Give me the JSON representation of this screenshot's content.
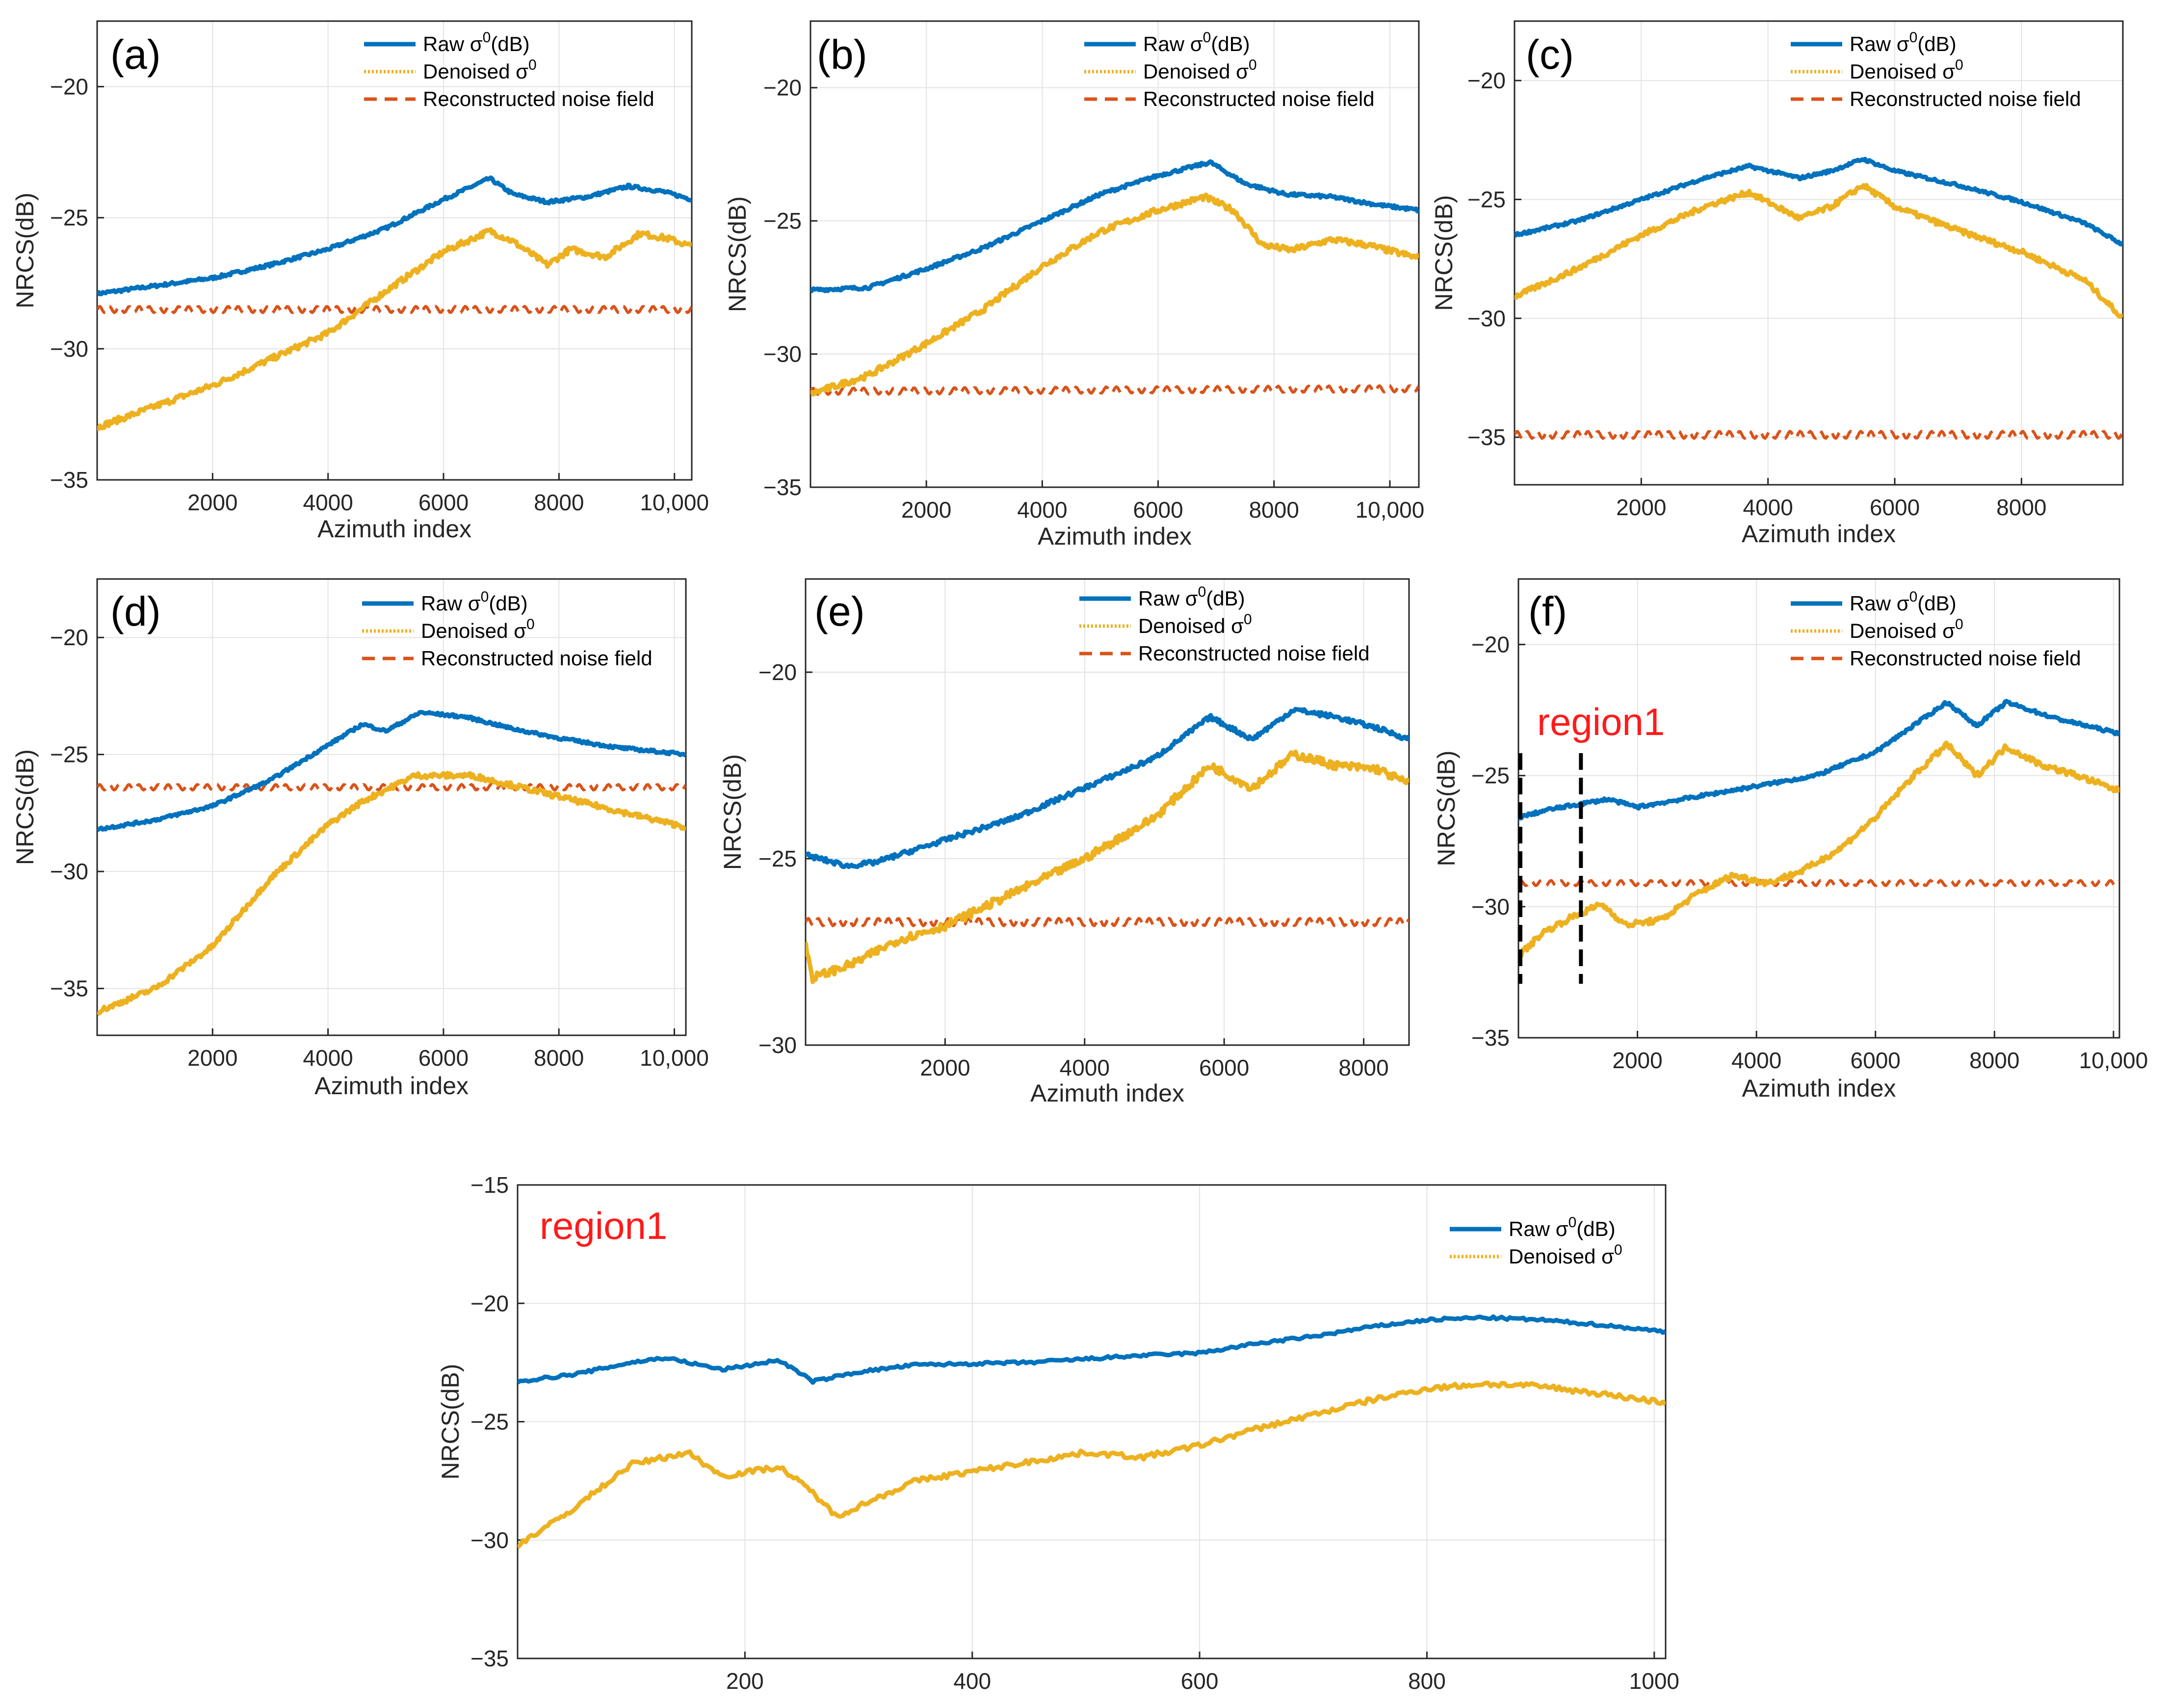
{
  "figure": {
    "legend": {
      "raw": "Raw σ",
      "raw_sup": "0",
      "raw_unit": "(dB)",
      "denoised": "Denoised σ",
      "denoised_sup": "0",
      "noise": "Reconstructed noise field"
    }
  },
  "colors": {
    "raw": "#0072BD",
    "denoised": "#EDB120",
    "noise": "#D95319",
    "region": "#FF1A1A",
    "grid": "#E3E3E3"
  },
  "chart_data": [
    {
      "id": "a",
      "label": "(a)",
      "type": "line",
      "xlabel": "Azimuth index",
      "ylabel": "NRCS(dB)",
      "xlim": [
        0,
        10300
      ],
      "ylim": [
        -35,
        -17.5
      ],
      "xticks": [
        2000,
        4000,
        6000,
        8000,
        10000
      ],
      "xtick_labels": [
        "2000",
        "4000",
        "6000",
        "8000",
        "10,000"
      ],
      "yticks": [
        -35,
        -30,
        -25,
        -20
      ],
      "ytick_labels": [
        "−35",
        "−30",
        "−25",
        "−20"
      ],
      "series": [
        {
          "name": "Raw σ0(dB)",
          "key": "raw",
          "x": [
            0,
            1000,
            2000,
            3000,
            4000,
            5000,
            6000,
            6800,
            7200,
            7800,
            8500,
            9200,
            9800,
            10300
          ],
          "y": [
            -27.9,
            -27.6,
            -27.3,
            -26.8,
            -26.2,
            -25.4,
            -24.3,
            -23.5,
            -24.1,
            -24.4,
            -24.2,
            -23.8,
            -24.0,
            -24.3
          ]
        },
        {
          "name": "Denoised σ0",
          "key": "denoised",
          "x": [
            0,
            1000,
            2000,
            3000,
            4000,
            4500,
            5000,
            6000,
            6800,
            7200,
            7800,
            8200,
            8800,
            9400,
            9900,
            10300
          ],
          "y": [
            -33.0,
            -32.2,
            -31.4,
            -30.4,
            -29.4,
            -28.6,
            -27.8,
            -26.3,
            -25.5,
            -25.9,
            -26.8,
            -26.2,
            -26.5,
            -25.6,
            -25.8,
            -26.1
          ]
        },
        {
          "name": "Reconstructed noise field",
          "key": "noise",
          "x": [
            0,
            10300
          ],
          "y": [
            -28.5,
            -28.5
          ],
          "wiggle": 0.12
        }
      ]
    },
    {
      "id": "b",
      "label": "(b)",
      "type": "line",
      "xlabel": "Azimuth index",
      "ylabel": "NRCS(dB)",
      "xlim": [
        0,
        10500
      ],
      "ylim": [
        -35,
        -17.5
      ],
      "xticks": [
        2000,
        4000,
        6000,
        8000,
        10000
      ],
      "xtick_labels": [
        "2000",
        "4000",
        "6000",
        "8000",
        "10,000"
      ],
      "yticks": [
        -35,
        -30,
        -25,
        -20
      ],
      "ytick_labels": [
        "−35",
        "−30",
        "−25",
        "−20"
      ],
      "series": [
        {
          "name": "Raw σ0(dB)",
          "key": "raw",
          "x": [
            0,
            1000,
            2000,
            3000,
            4000,
            5000,
            6000,
            6900,
            7500,
            8200,
            9000,
            9800,
            10500
          ],
          "y": [
            -27.6,
            -27.5,
            -26.8,
            -26.0,
            -25.0,
            -24.0,
            -23.3,
            -22.8,
            -23.6,
            -24.0,
            -24.1,
            -24.4,
            -24.6
          ]
        },
        {
          "name": "Denoised σ0",
          "key": "denoised",
          "x": [
            0,
            1000,
            2000,
            3000,
            4000,
            5000,
            6000,
            6800,
            7300,
            7800,
            8300,
            9000,
            9600,
            10500
          ],
          "y": [
            -31.5,
            -30.8,
            -29.6,
            -28.3,
            -26.7,
            -25.4,
            -24.6,
            -24.1,
            -24.6,
            -25.9,
            -26.1,
            -25.7,
            -25.9,
            -26.4
          ]
        },
        {
          "name": "Reconstructed noise field",
          "key": "noise",
          "x": [
            0,
            10500
          ],
          "y": [
            -31.4,
            -31.3
          ],
          "wiggle": 0.12
        }
      ]
    },
    {
      "id": "c",
      "label": "(c)",
      "type": "line",
      "xlabel": "Azimuth index",
      "ylabel": "NRCS(dB)",
      "xlim": [
        0,
        9600
      ],
      "ylim": [
        -37,
        -17.5
      ],
      "xticks": [
        2000,
        4000,
        6000,
        8000
      ],
      "xtick_labels": [
        "2000",
        "4000",
        "6000",
        "8000"
      ],
      "yticks": [
        -35,
        -30,
        -25,
        -20
      ],
      "ytick_labels": [
        "−35",
        "−30",
        "−25",
        "−20"
      ],
      "series": [
        {
          "name": "Raw σ0(dB)",
          "key": "raw",
          "x": [
            0,
            1000,
            2000,
            3000,
            3700,
            4500,
            5000,
            5500,
            6000,
            7000,
            8000,
            9000,
            9600
          ],
          "y": [
            -26.5,
            -25.9,
            -25.0,
            -24.1,
            -23.6,
            -24.1,
            -23.8,
            -23.3,
            -23.8,
            -24.4,
            -25.1,
            -26.0,
            -26.9
          ]
        },
        {
          "name": "Denoised σ0",
          "key": "denoised",
          "x": [
            0,
            1000,
            2000,
            3000,
            3700,
            4500,
            5000,
            5500,
            6000,
            7000,
            8000,
            9000,
            9600
          ],
          "y": [
            -29.1,
            -27.9,
            -26.5,
            -25.3,
            -24.7,
            -25.8,
            -25.3,
            -24.4,
            -25.3,
            -26.3,
            -27.2,
            -28.4,
            -30.0
          ]
        },
        {
          "name": "Reconstructed noise field",
          "key": "noise",
          "x": [
            0,
            9600
          ],
          "y": [
            -34.9,
            -34.9
          ],
          "wiggle": 0.15
        }
      ]
    },
    {
      "id": "d",
      "label": "(d)",
      "type": "line",
      "xlabel": "Azimuth index",
      "ylabel": "NRCS(dB)",
      "xlim": [
        0,
        10200
      ],
      "ylim": [
        -37,
        -17.5
      ],
      "xticks": [
        2000,
        4000,
        6000,
        8000,
        10000
      ],
      "xtick_labels": [
        "2000",
        "4000",
        "6000",
        "8000",
        "10,000"
      ],
      "yticks": [
        -35,
        -30,
        -25,
        -20
      ],
      "ytick_labels": [
        "−35",
        "−30",
        "−25",
        "−20"
      ],
      "series": [
        {
          "name": "Raw σ0(dB)",
          "key": "raw",
          "x": [
            0,
            1000,
            2000,
            3000,
            4000,
            4600,
            5000,
            5600,
            6400,
            7200,
            8000,
            9000,
            10200
          ],
          "y": [
            -28.2,
            -27.8,
            -27.2,
            -26.1,
            -24.6,
            -23.7,
            -24.0,
            -23.2,
            -23.4,
            -23.9,
            -24.3,
            -24.7,
            -25.0
          ]
        },
        {
          "name": "Denoised σ0",
          "key": "denoised",
          "x": [
            0,
            1000,
            2000,
            3000,
            4000,
            4600,
            5500,
            6500,
            7500,
            8500,
            9500,
            10200
          ],
          "y": [
            -36.0,
            -35.0,
            -33.2,
            -30.3,
            -28.0,
            -27.0,
            -25.9,
            -25.9,
            -26.5,
            -27.1,
            -27.7,
            -28.1
          ]
        },
        {
          "name": "Reconstructed noise field",
          "key": "noise",
          "x": [
            0,
            10200
          ],
          "y": [
            -26.4,
            -26.4
          ],
          "wiggle": 0.12
        }
      ]
    },
    {
      "id": "e",
      "label": "(e)",
      "type": "line",
      "xlabel": "Azimuth index",
      "ylabel": "NRCS(dB)",
      "xlim": [
        0,
        8650
      ],
      "ylim": [
        -30,
        -17.5
      ],
      "xticks": [
        2000,
        4000,
        6000,
        8000
      ],
      "xtick_labels": [
        "2000",
        "4000",
        "6000",
        "8000"
      ],
      "yticks": [
        -30,
        -25,
        -20
      ],
      "ytick_labels": [
        "−30",
        "−25",
        "−20"
      ],
      "series": [
        {
          "name": "Raw σ0(dB)",
          "key": "raw",
          "x": [
            0,
            600,
            1000,
            2000,
            3000,
            4000,
            5000,
            5800,
            6400,
            7000,
            7600,
            8200,
            8650
          ],
          "y": [
            -24.9,
            -25.2,
            -25.1,
            -24.5,
            -23.9,
            -23.1,
            -22.3,
            -21.2,
            -21.8,
            -21.0,
            -21.2,
            -21.5,
            -21.8
          ]
        },
        {
          "name": "Denoised σ0",
          "key": "denoised",
          "x": [
            0,
            100,
            700,
            1300,
            2000,
            3000,
            4000,
            5000,
            5800,
            6400,
            7000,
            7600,
            8200,
            8650
          ],
          "y": [
            -27.3,
            -28.2,
            -27.8,
            -27.2,
            -26.8,
            -25.9,
            -25.0,
            -23.9,
            -22.5,
            -23.1,
            -22.2,
            -22.5,
            -22.6,
            -23.0
          ]
        },
        {
          "name": "Reconstructed noise field",
          "key": "noise",
          "x": [
            0,
            8650
          ],
          "y": [
            -26.7,
            -26.7
          ],
          "wiggle": 0.1
        }
      ]
    },
    {
      "id": "f",
      "label": "(f)",
      "type": "line",
      "xlabel": "Azimuth index",
      "ylabel": "NRCS(dB)",
      "xlim": [
        0,
        10100
      ],
      "ylim": [
        -35,
        -17.5
      ],
      "xticks": [
        2000,
        4000,
        6000,
        8000,
        10000
      ],
      "xtick_labels": [
        "2000",
        "4000",
        "6000",
        "8000",
        "10,000"
      ],
      "yticks": [
        -35,
        -30,
        -25,
        -20
      ],
      "ytick_labels": [
        "−35",
        "−30",
        "−25",
        "−20"
      ],
      "annotation": {
        "text": "region1",
        "x_start": 0,
        "x_end": 1050
      },
      "series": [
        {
          "name": "Raw σ0(dB)",
          "key": "raw",
          "x": [
            0,
            500,
            1000,
            1500,
            2000,
            3000,
            4000,
            5000,
            6000,
            7200,
            7700,
            8200,
            9000,
            10100
          ],
          "y": [
            -26.6,
            -26.3,
            -26.1,
            -25.9,
            -26.2,
            -25.8,
            -25.4,
            -25.0,
            -24.1,
            -22.2,
            -23.1,
            -22.2,
            -22.8,
            -23.4
          ]
        },
        {
          "name": "Denoised σ0",
          "key": "denoised",
          "x": [
            0,
            400,
            900,
            1400,
            1800,
            2400,
            3000,
            3600,
            4200,
            4800,
            5400,
            6000,
            6600,
            7200,
            7700,
            8200,
            8800,
            9400,
            10100
          ],
          "y": [
            -31.9,
            -31.0,
            -30.4,
            -29.9,
            -30.7,
            -30.5,
            -29.5,
            -28.8,
            -29.1,
            -28.6,
            -27.8,
            -26.6,
            -25.1,
            -23.8,
            -25.0,
            -23.9,
            -24.6,
            -25.0,
            -25.6
          ]
        },
        {
          "name": "Reconstructed noise field",
          "key": "noise",
          "x": [
            0,
            10100
          ],
          "y": [
            -29.1,
            -29.1
          ],
          "wiggle": 0.1
        }
      ]
    },
    {
      "id": "region1",
      "label": "",
      "type": "line",
      "xlabel": "",
      "ylabel": "NRCS(dB)",
      "xlim": [
        0,
        1010
      ],
      "ylim": [
        -35,
        -15
      ],
      "xticks": [
        200,
        400,
        600,
        800,
        1000
      ],
      "xtick_labels": [
        "200",
        "400",
        "600",
        "800",
        "1000"
      ],
      "yticks": [
        -35,
        -30,
        -25,
        -20,
        -15
      ],
      "ytick_labels": [
        "−35",
        "−30",
        "−25",
        "−20",
        "−15"
      ],
      "annotation": {
        "text": "region1"
      },
      "series": [
        {
          "name": "Raw σ0(dB)",
          "key": "raw",
          "x": [
            0,
            50,
            100,
            130,
            180,
            230,
            260,
            300,
            350,
            450,
            550,
            600,
            650,
            700,
            750,
            800,
            850,
            900,
            950,
            1010
          ],
          "y": [
            -23.3,
            -23.0,
            -22.5,
            -22.3,
            -22.8,
            -22.4,
            -23.3,
            -22.9,
            -22.6,
            -22.5,
            -22.2,
            -22.1,
            -21.7,
            -21.4,
            -21.0,
            -20.7,
            -20.6,
            -20.7,
            -20.9,
            -21.2
          ]
        },
        {
          "name": "Denoised σ0",
          "key": "denoised",
          "x": [
            0,
            40,
            100,
            150,
            180,
            230,
            260,
            280,
            350,
            450,
            500,
            550,
            600,
            650,
            700,
            750,
            800,
            850,
            900,
            950,
            1010
          ],
          "y": [
            -30.2,
            -29.0,
            -26.8,
            -26.3,
            -27.3,
            -26.9,
            -28.0,
            -29.0,
            -27.5,
            -26.7,
            -26.3,
            -26.5,
            -26.0,
            -25.3,
            -24.7,
            -24.1,
            -23.6,
            -23.4,
            -23.5,
            -23.8,
            -24.2
          ]
        }
      ]
    }
  ]
}
